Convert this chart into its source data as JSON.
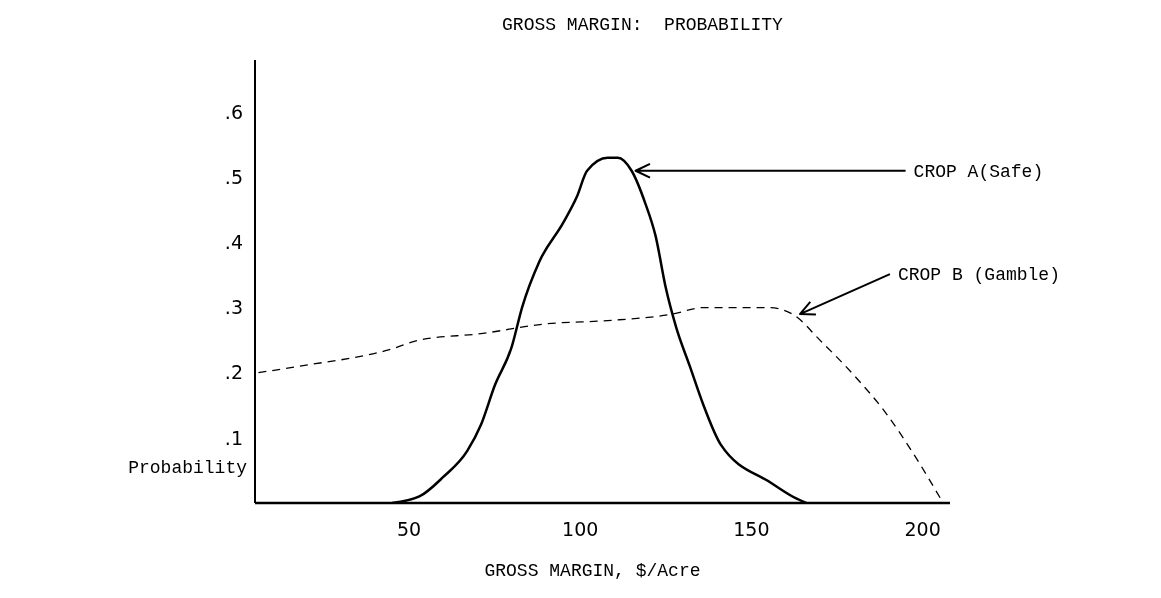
{
  "chart_data": {
    "type": "line",
    "title": "GROSS MARGIN:  PROBABILITY",
    "xlabel": "GROSS MARGIN, $/Acre",
    "ylabel": "Probability",
    "annotations": [
      {
        "text": "CROP A(Safe)",
        "x": 115,
        "y": 0.51
      },
      {
        "text": "CROP B (Gamble)",
        "x": 163,
        "y": 0.29
      }
    ],
    "series": [
      {
        "color": "#000000",
        "line_style": "solid",
        "x": [
          45,
          53,
          60,
          67,
          71,
          75,
          80,
          83,
          88,
          95,
          99,
          102,
          108,
          111,
          115,
          119,
          122,
          125,
          128,
          132,
          136,
          141,
          156,
          162,
          166
        ],
        "values": [
          0,
          0.01,
          0.04,
          0.08,
          0.12,
          0.18,
          0.24,
          0.3,
          0.37,
          0.43,
          0.47,
          0.51,
          0.53,
          0.53,
          0.51,
          0.46,
          0.41,
          0.33,
          0.27,
          0.21,
          0.15,
          0.09,
          0.03,
          0.01,
          0
        ]
      },
      {
        "color": "#000000",
        "line_style": "dashed",
        "x": [
          6,
          18,
          44,
          53,
          71,
          90,
          108,
          127,
          136,
          155,
          162,
          170,
          181,
          189,
          198,
          206
        ],
        "values": [
          0.2,
          0.21,
          0.235,
          0.25,
          0.26,
          0.275,
          0.28,
          0.29,
          0.3,
          0.3,
          0.29,
          0.25,
          0.19,
          0.14,
          0.07,
          0
        ]
      }
    ],
    "xlim": [
      5,
      208
    ],
    "ylim": [
      0,
      0.68
    ],
    "xticks": [
      50,
      100,
      150,
      200
    ],
    "yticks": [
      {
        "value": 0.1,
        "label": ".1"
      },
      {
        "value": 0.2,
        "label": ".2"
      },
      {
        "value": 0.3,
        "label": ".3"
      },
      {
        "value": 0.4,
        "label": ".4"
      },
      {
        "value": 0.5,
        "label": ".5"
      },
      {
        "value": 0.6,
        "label": ".6"
      }
    ]
  }
}
